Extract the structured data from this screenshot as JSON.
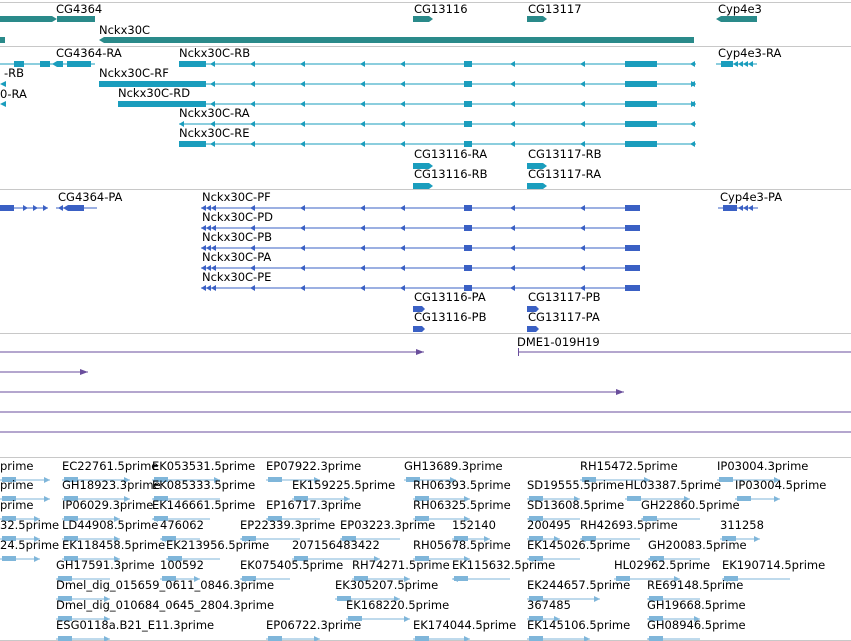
{
  "colors": {
    "gene": "#2a8a8a",
    "mrna": "#1a9dbd",
    "cds": "#3a60c4",
    "clone": "#6a4e9c",
    "est": "#7fb6da",
    "separator": "#c8c8c8"
  },
  "tracks": [
    {
      "id": "genes",
      "name": "gene-track",
      "features": [
        {
          "label": "CG4364"
        },
        {
          "label": "Nckx30C"
        },
        {
          "label": "CG13116"
        },
        {
          "label": "CG13117"
        },
        {
          "label": "Cyp4e3"
        }
      ]
    },
    {
      "id": "transcripts",
      "name": "transcript-track",
      "features": [
        {
          "label": "-RB"
        },
        {
          "label": "0-RA"
        },
        {
          "label": "CG4364-RA"
        },
        {
          "label": "Nckx30C-RB"
        },
        {
          "label": "Nckx30C-RF"
        },
        {
          "label": "Nckx30C-RD"
        },
        {
          "label": "Nckx30C-RA"
        },
        {
          "label": "Nckx30C-RE"
        },
        {
          "label": "Cyp4e3-RA"
        },
        {
          "label": "CG13116-RA"
        },
        {
          "label": "CG13116-RB"
        },
        {
          "label": "CG13117-RB"
        },
        {
          "label": "CG13117-RA"
        }
      ]
    },
    {
      "id": "proteins",
      "name": "protein-track",
      "features": [
        {
          "label": "CG4364-PA"
        },
        {
          "label": "Nckx30C-PF"
        },
        {
          "label": "Nckx30C-PD"
        },
        {
          "label": "Nckx30C-PB"
        },
        {
          "label": "Nckx30C-PA"
        },
        {
          "label": "Nckx30C-PE"
        },
        {
          "label": "Cyp4e3-PA"
        },
        {
          "label": "CG13116-PA"
        },
        {
          "label": "CG13116-PB"
        },
        {
          "label": "CG13117-PB"
        },
        {
          "label": "CG13117-PA"
        }
      ]
    },
    {
      "id": "clones",
      "name": "clone-track",
      "features": [
        {
          "label": "DME1-019H19"
        }
      ]
    },
    {
      "id": "ests",
      "name": "est-track",
      "features": [
        {
          "label": "prime"
        },
        {
          "label": "EC22761.5prime"
        },
        {
          "label": "EK053531.5prime"
        },
        {
          "label": "EP07922.3prime"
        },
        {
          "label": "GH13689.3prime"
        },
        {
          "label": "RH15472.5prime"
        },
        {
          "label": "IP03004.3prime"
        },
        {
          "label": "prime"
        },
        {
          "label": "GH18923.3prime"
        },
        {
          "label": "EK085333.5prime"
        },
        {
          "label": "EK159225.5prime"
        },
        {
          "label": "RH06393.5prime"
        },
        {
          "label": "SD19555.5prime"
        },
        {
          "label": "HL03387.5prime"
        },
        {
          "label": "IP03004.5prime"
        },
        {
          "label": "prime"
        },
        {
          "label": "IP06029.3prime"
        },
        {
          "label": "EK146661.5prime"
        },
        {
          "label": "EP16717.3prime"
        },
        {
          "label": "RH06325.5prime"
        },
        {
          "label": "SD13608.5prime"
        },
        {
          "label": "GH22860.5prime"
        },
        {
          "label": "32.5prime"
        },
        {
          "label": "LD44908.5prime"
        },
        {
          "label": "476062"
        },
        {
          "label": "EP22339.3prime"
        },
        {
          "label": "EP03223.3prime"
        },
        {
          "label": "152140"
        },
        {
          "label": "200495"
        },
        {
          "label": "RH42693.5prime"
        },
        {
          "label": "311258"
        },
        {
          "label": "24.5prime"
        },
        {
          "label": "EK118458.5prime"
        },
        {
          "label": "EK213956.5prime"
        },
        {
          "label": "207156483422"
        },
        {
          "label": "RH05678.5prime"
        },
        {
          "label": "EK145026.5prime"
        },
        {
          "label": "GH20083.5prime"
        },
        {
          "label": "GH17591.3prime"
        },
        {
          "label": "100592"
        },
        {
          "label": "EK075405.5prime"
        },
        {
          "label": "RH74271.5prime"
        },
        {
          "label": "EK115632.5prime"
        },
        {
          "label": "HL02962.5prime"
        },
        {
          "label": "EK190714.5prime"
        },
        {
          "label": "Dmel_dig_015659_0611_0846.3prime"
        },
        {
          "label": "EK305207.5prime"
        },
        {
          "label": "EK244657.5prime"
        },
        {
          "label": "RE69148.5prime"
        },
        {
          "label": "Dmel_dig_010684_0645_2804.3prime"
        },
        {
          "label": "EK168220.5prime"
        },
        {
          "label": "367485"
        },
        {
          "label": "GH19668.5prime"
        },
        {
          "label": "ESG0118a.B21_E11.3prime"
        },
        {
          "label": "EP06722.3prime"
        },
        {
          "label": "EK174044.5prime"
        },
        {
          "label": "EK145106.5prime"
        },
        {
          "label": "GH08946.5prime"
        }
      ]
    }
  ]
}
